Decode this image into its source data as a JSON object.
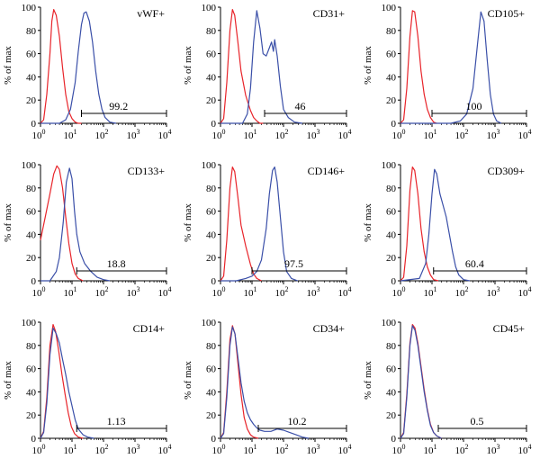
{
  "chart_data": [
    {
      "type": "line",
      "marker": "vWF+",
      "gate_label": "99.2",
      "gate": [
        1.3,
        4.0
      ],
      "ylabel": "% of max",
      "xscale": "log",
      "xlim": [
        0,
        4
      ],
      "ylim": [
        0,
        100
      ],
      "xticks": [
        "10",
        "10",
        "10",
        "10",
        "10"
      ],
      "xtick_exps": [
        "0",
        "1",
        "2",
        "3",
        "4"
      ],
      "yticks": [
        "0",
        "20",
        "40",
        "60",
        "80",
        "100"
      ],
      "series": [
        {
          "color": "#e8242a",
          "x": [
            0,
            0.1,
            0.2,
            0.3,
            0.36,
            0.42,
            0.5,
            0.6,
            0.7,
            0.8,
            0.9,
            1.0,
            1.1,
            1.2,
            1.3
          ],
          "y": [
            0,
            3,
            25,
            60,
            88,
            98,
            93,
            75,
            48,
            25,
            10,
            4,
            1,
            0,
            0
          ]
        },
        {
          "color": "#3a4fa8",
          "x": [
            0,
            0.6,
            0.8,
            0.95,
            1.1,
            1.2,
            1.3,
            1.38,
            1.45,
            1.55,
            1.65,
            1.75,
            1.85,
            1.95,
            2.05,
            2.2,
            2.4
          ],
          "y": [
            0,
            0,
            3,
            12,
            35,
            62,
            85,
            95,
            96,
            88,
            70,
            45,
            25,
            12,
            5,
            1,
            0
          ]
        }
      ]
    },
    {
      "type": "line",
      "marker": "CD31+",
      "gate_label": "46",
      "gate": [
        1.4,
        4.0
      ],
      "ylabel": "% of max",
      "xscale": "log",
      "xlim": [
        0,
        4
      ],
      "ylim": [
        0,
        100
      ],
      "xticks": [
        "10",
        "10",
        "10",
        "10",
        "10"
      ],
      "xtick_exps": [
        "0",
        "1",
        "2",
        "3",
        "4"
      ],
      "yticks": [
        "0",
        "20",
        "40",
        "60",
        "80",
        "100"
      ],
      "series": [
        {
          "color": "#e8242a",
          "x": [
            0,
            0.1,
            0.2,
            0.3,
            0.38,
            0.45,
            0.55,
            0.65,
            0.8,
            0.95,
            1.05,
            1.15,
            1.25,
            1.35
          ],
          "y": [
            0,
            4,
            35,
            80,
            98,
            93,
            70,
            45,
            24,
            11,
            5,
            2,
            0,
            0
          ]
        },
        {
          "color": "#3a4fa8",
          "x": [
            0,
            0.7,
            0.85,
            0.95,
            1.05,
            1.15,
            1.25,
            1.35,
            1.45,
            1.55,
            1.62,
            1.68,
            1.72,
            1.8,
            1.9,
            2.0,
            2.15,
            2.35,
            2.6
          ],
          "y": [
            0,
            0,
            8,
            30,
            70,
            97,
            82,
            60,
            58,
            65,
            70,
            62,
            72,
            58,
            32,
            12,
            5,
            1,
            0
          ]
        }
      ]
    },
    {
      "type": "line",
      "marker": "CD105+",
      "gate_label": "100",
      "gate": [
        1.0,
        4.0
      ],
      "ylabel": "% of max",
      "xscale": "log",
      "xlim": [
        0,
        4
      ],
      "ylim": [
        0,
        100
      ],
      "xticks": [
        "10",
        "10",
        "10",
        "10",
        "10"
      ],
      "xtick_exps": [
        "0",
        "1",
        "2",
        "3",
        "4"
      ],
      "yticks": [
        "0",
        "20",
        "40",
        "60",
        "80",
        "100"
      ],
      "series": [
        {
          "color": "#e8242a",
          "x": [
            0,
            0.1,
            0.2,
            0.3,
            0.38,
            0.45,
            0.55,
            0.65,
            0.75,
            0.85,
            0.95,
            1.05,
            1.15
          ],
          "y": [
            0,
            3,
            30,
            75,
            97,
            96,
            75,
            45,
            25,
            12,
            5,
            1,
            0
          ]
        },
        {
          "color": "#3a4fa8",
          "x": [
            0,
            1.6,
            1.9,
            2.1,
            2.3,
            2.45,
            2.55,
            2.65,
            2.75,
            2.85,
            2.95,
            3.05,
            3.2
          ],
          "y": [
            0,
            0,
            2,
            8,
            30,
            70,
            96,
            88,
            55,
            25,
            8,
            2,
            0
          ]
        }
      ]
    },
    {
      "type": "line",
      "marker": "CD133+",
      "gate_label": "18.8",
      "gate": [
        1.15,
        4.0
      ],
      "ylabel": "% of max",
      "xscale": "log",
      "xlim": [
        0,
        4
      ],
      "ylim": [
        0,
        100
      ],
      "xticks": [
        "10",
        "10",
        "10",
        "10",
        "10"
      ],
      "xtick_exps": [
        "0",
        "1",
        "2",
        "3",
        "4"
      ],
      "yticks": [
        "0",
        "20",
        "40",
        "60",
        "80",
        "100"
      ],
      "series": [
        {
          "color": "#e8242a",
          "x": [
            0,
            0.15,
            0.3,
            0.42,
            0.52,
            0.6,
            0.7,
            0.8,
            0.9,
            1.0,
            1.1,
            1.2,
            1.35
          ],
          "y": [
            35,
            55,
            75,
            92,
            99,
            96,
            80,
            55,
            32,
            15,
            6,
            2,
            0
          ]
        },
        {
          "color": "#3a4fa8",
          "x": [
            0,
            0.3,
            0.5,
            0.6,
            0.72,
            0.82,
            0.92,
            1.0,
            1.08,
            1.15,
            1.25,
            1.4,
            1.6,
            1.8,
            2.0,
            2.2
          ],
          "y": [
            0,
            0,
            8,
            20,
            50,
            85,
            97,
            88,
            60,
            40,
            25,
            15,
            8,
            3,
            1,
            0
          ]
        }
      ]
    },
    {
      "type": "line",
      "marker": "CD146+",
      "gate_label": "97.5",
      "gate": [
        1.0,
        4.0
      ],
      "ylabel": "% of max",
      "xscale": "log",
      "xlim": [
        0,
        4
      ],
      "ylim": [
        0,
        100
      ],
      "xticks": [
        "10",
        "10",
        "10",
        "10",
        "10"
      ],
      "xtick_exps": [
        "0",
        "1",
        "2",
        "3",
        "4"
      ],
      "yticks": [
        "0",
        "20",
        "40",
        "60",
        "80",
        "100"
      ],
      "series": [
        {
          "color": "#e8242a",
          "x": [
            0,
            0.1,
            0.2,
            0.3,
            0.38,
            0.45,
            0.55,
            0.65,
            0.8,
            0.95,
            1.05,
            1.15,
            1.3
          ],
          "y": [
            0,
            4,
            35,
            80,
            98,
            94,
            72,
            48,
            30,
            14,
            6,
            2,
            0
          ]
        },
        {
          "color": "#3a4fa8",
          "x": [
            0,
            0.5,
            0.8,
            1.0,
            1.15,
            1.3,
            1.45,
            1.55,
            1.65,
            1.72,
            1.8,
            1.9,
            2.0,
            2.1,
            2.25,
            2.45
          ],
          "y": [
            0,
            0,
            2,
            4,
            8,
            18,
            45,
            75,
            95,
            98,
            85,
            55,
            25,
            8,
            2,
            0
          ]
        }
      ]
    },
    {
      "type": "line",
      "marker": "CD309+",
      "gate_label": "60.4",
      "gate": [
        1.05,
        4.0
      ],
      "ylabel": "% of max",
      "xscale": "log",
      "xlim": [
        0,
        4
      ],
      "ylim": [
        0,
        100
      ],
      "xticks": [
        "10",
        "10",
        "10",
        "10",
        "10"
      ],
      "xtick_exps": [
        "0",
        "1",
        "2",
        "3",
        "4"
      ],
      "yticks": [
        "0",
        "20",
        "40",
        "60",
        "80",
        "100"
      ],
      "series": [
        {
          "color": "#e8242a",
          "x": [
            0,
            0.1,
            0.2,
            0.3,
            0.38,
            0.45,
            0.55,
            0.65,
            0.75,
            0.85,
            0.95,
            1.05,
            1.2
          ],
          "y": [
            0,
            3,
            30,
            78,
            98,
            95,
            75,
            45,
            25,
            12,
            5,
            1,
            0
          ]
        },
        {
          "color": "#3a4fa8",
          "x": [
            0,
            0.6,
            0.8,
            0.9,
            1.0,
            1.08,
            1.15,
            1.25,
            1.35,
            1.45,
            1.55,
            1.65,
            1.75,
            1.85,
            2.0,
            2.2
          ],
          "y": [
            0,
            2,
            15,
            40,
            75,
            96,
            92,
            75,
            65,
            55,
            40,
            25,
            12,
            5,
            1,
            0
          ]
        }
      ]
    },
    {
      "type": "line",
      "marker": "CD14+",
      "gate_label": "1.13",
      "gate": [
        1.15,
        4.0
      ],
      "ylabel": "% of max",
      "xscale": "log",
      "xlim": [
        0,
        4
      ],
      "ylim": [
        0,
        100
      ],
      "xticks": [
        "10",
        "10",
        "10",
        "10",
        "10"
      ],
      "xtick_exps": [
        "0",
        "1",
        "2",
        "3",
        "4"
      ],
      "yticks": [
        "0",
        "20",
        "40",
        "60",
        "80",
        "100"
      ],
      "series": [
        {
          "color": "#e8242a",
          "x": [
            0,
            0.1,
            0.2,
            0.3,
            0.4,
            0.48,
            0.58,
            0.68,
            0.78,
            0.88,
            0.98,
            1.08,
            1.2,
            1.35
          ],
          "y": [
            0,
            6,
            35,
            80,
            98,
            92,
            75,
            55,
            38,
            22,
            10,
            4,
            1,
            0
          ]
        },
        {
          "color": "#3a4fa8",
          "x": [
            0,
            0.1,
            0.2,
            0.3,
            0.4,
            0.5,
            0.6,
            0.7,
            0.8,
            0.9,
            1.0,
            1.1,
            1.2,
            1.35,
            1.5,
            1.7
          ],
          "y": [
            0,
            5,
            30,
            72,
            95,
            90,
            82,
            68,
            55,
            40,
            28,
            16,
            8,
            3,
            1,
            0
          ]
        }
      ]
    },
    {
      "type": "line",
      "marker": "CD34+",
      "gate_label": "10.2",
      "gate": [
        1.2,
        4.0
      ],
      "ylabel": "% of max",
      "xscale": "log",
      "xlim": [
        0,
        4
      ],
      "ylim": [
        0,
        100
      ],
      "xticks": [
        "10",
        "10",
        "10",
        "10",
        "10"
      ],
      "xtick_exps": [
        "0",
        "1",
        "2",
        "3",
        "4"
      ],
      "yticks": [
        "0",
        "20",
        "40",
        "60",
        "80",
        "100"
      ],
      "series": [
        {
          "color": "#e8242a",
          "x": [
            0,
            0.1,
            0.2,
            0.3,
            0.38,
            0.46,
            0.55,
            0.65,
            0.75,
            0.85,
            0.95,
            1.05,
            1.2
          ],
          "y": [
            0,
            5,
            40,
            85,
            97,
            90,
            65,
            38,
            18,
            8,
            3,
            1,
            0
          ]
        },
        {
          "color": "#3a4fa8",
          "x": [
            0,
            0.1,
            0.2,
            0.3,
            0.38,
            0.46,
            0.55,
            0.65,
            0.75,
            0.85,
            0.95,
            1.05,
            1.15,
            1.25,
            1.4,
            1.6,
            1.8,
            2.0,
            2.2,
            2.4,
            2.6,
            2.8
          ],
          "y": [
            0,
            4,
            35,
            80,
            96,
            90,
            70,
            48,
            32,
            22,
            16,
            12,
            9,
            7,
            6,
            6,
            8,
            7,
            5,
            3,
            1,
            0
          ]
        }
      ]
    },
    {
      "type": "line",
      "marker": "CD45+",
      "gate_label": "0.5",
      "gate": [
        1.2,
        4.0
      ],
      "ylabel": "% of max",
      "xscale": "log",
      "xlim": [
        0,
        4
      ],
      "ylim": [
        0,
        100
      ],
      "xticks": [
        "10",
        "10",
        "10",
        "10",
        "10"
      ],
      "xtick_exps": [
        "0",
        "1",
        "2",
        "3",
        "4"
      ],
      "yticks": [
        "0",
        "20",
        "40",
        "60",
        "80",
        "100"
      ],
      "series": [
        {
          "color": "#e8242a",
          "x": [
            0,
            0.1,
            0.2,
            0.3,
            0.38,
            0.46,
            0.55,
            0.65,
            0.75,
            0.85,
            0.95,
            1.05,
            1.15,
            1.3
          ],
          "y": [
            0,
            5,
            38,
            82,
            98,
            95,
            82,
            62,
            42,
            25,
            12,
            5,
            2,
            0
          ]
        },
        {
          "color": "#3a4fa8",
          "x": [
            0,
            0.1,
            0.2,
            0.3,
            0.38,
            0.46,
            0.55,
            0.65,
            0.75,
            0.85,
            0.95,
            1.05,
            1.15,
            1.3
          ],
          "y": [
            0,
            4,
            35,
            80,
            97,
            93,
            80,
            60,
            40,
            24,
            11,
            5,
            2,
            0
          ]
        }
      ]
    }
  ]
}
